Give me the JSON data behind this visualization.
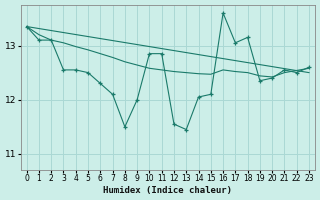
{
  "xlabel": "Humidex (Indice chaleur)",
  "bg_color": "#cceee8",
  "grid_color": "#aad8d4",
  "line_color": "#1a7a6a",
  "xlim": [
    -0.5,
    23.5
  ],
  "ylim": [
    10.7,
    13.75
  ],
  "yticks": [
    11,
    12,
    13
  ],
  "xticks": [
    0,
    1,
    2,
    3,
    4,
    5,
    6,
    7,
    8,
    9,
    10,
    11,
    12,
    13,
    14,
    15,
    16,
    17,
    18,
    19,
    20,
    21,
    22,
    23
  ],
  "jagged_x": [
    0,
    1,
    2,
    3,
    4,
    5,
    6,
    7,
    8,
    9,
    10,
    11,
    12,
    13,
    14,
    15,
    16,
    17,
    18,
    19,
    20,
    21,
    22,
    23
  ],
  "jagged_y": [
    13.35,
    13.1,
    13.1,
    12.55,
    12.55,
    12.5,
    12.3,
    12.1,
    11.5,
    12.0,
    12.85,
    12.85,
    11.55,
    11.45,
    12.05,
    12.1,
    13.6,
    13.05,
    13.15,
    12.35,
    12.4,
    12.55,
    12.5,
    12.6
  ],
  "smooth_x": [
    0,
    1,
    2,
    3,
    4,
    5,
    6,
    7,
    8,
    9,
    10,
    11,
    12,
    13,
    14,
    15,
    16,
    17,
    18,
    19,
    20,
    21,
    22,
    23
  ],
  "smooth_y": [
    13.35,
    13.2,
    13.1,
    13.05,
    12.98,
    12.92,
    12.85,
    12.78,
    12.7,
    12.64,
    12.58,
    12.55,
    12.52,
    12.5,
    12.48,
    12.47,
    12.55,
    12.52,
    12.5,
    12.44,
    12.42,
    12.5,
    12.54,
    12.58
  ],
  "trend_x": [
    0,
    23
  ],
  "trend_y": [
    13.35,
    12.5
  ]
}
